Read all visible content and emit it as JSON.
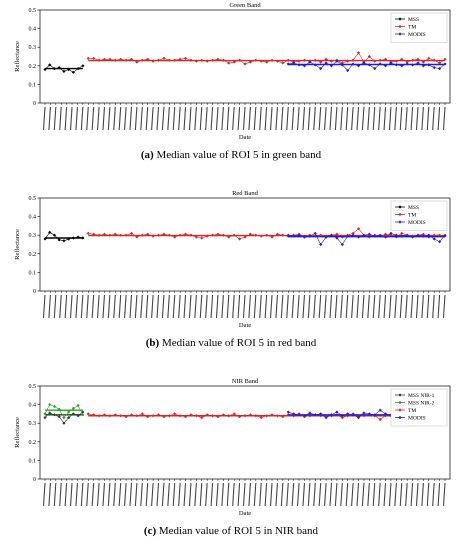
{
  "captions": [
    {
      "letter": "(a)",
      "text": "Median value of ROI 5 in green band"
    },
    {
      "letter": "(b)",
      "text": "Median value of ROI 5 in red band"
    },
    {
      "letter": "(c)",
      "text": "Median value of ROI 5 in NIR band"
    }
  ],
  "colors": {
    "MSS": "#000000",
    "TM": "#d62728",
    "MODIS": "#1f1fd0",
    "MSS NIR-1": "#1f3f1f",
    "MSS NIR-2": "#2ca02c"
  },
  "chart_data": [
    {
      "type": "line",
      "title": "Green Band",
      "xlabel": "Date",
      "ylabel": "Reflectance",
      "ylim": [
        0,
        0.5
      ],
      "yticks": [
        "0",
        "0.1",
        "0.2",
        "0.3",
        "0.4",
        "0.5"
      ],
      "grid": false,
      "legend_position": "top-right",
      "x_tick_labels_note": "dense rotated date tick labels (yyyy/mm/dd), not individually legible",
      "series": [
        {
          "name": "MSS",
          "color_key": "MSS",
          "x_range": [
            0,
            7
          ],
          "mean": 0.185,
          "values": [
            0.18,
            0.205,
            0.185,
            0.19,
            0.17,
            0.18,
            0.165,
            0.185,
            0.2
          ]
        },
        {
          "name": "TM",
          "color_key": "TM",
          "x_range": [
            8,
            74
          ],
          "mean": 0.228,
          "values": [
            0.24,
            0.24,
            0.23,
            0.235,
            0.235,
            0.23,
            0.235,
            0.23,
            0.235,
            0.22,
            0.23,
            0.235,
            0.225,
            0.23,
            0.24,
            0.23,
            0.23,
            0.235,
            0.24,
            0.23,
            0.225,
            0.23,
            0.225,
            0.23,
            0.235,
            0.23,
            0.215,
            0.22,
            0.23,
            0.21,
            0.22,
            0.23,
            0.225,
            0.22,
            0.23,
            0.225,
            0.215,
            0.23,
            0.22,
            0.225,
            0.23,
            0.225,
            0.23,
            0.22,
            0.235,
            0.225,
            0.23,
            0.215,
            0.225,
            0.23,
            0.27,
            0.22,
            0.25,
            0.225,
            0.23,
            0.235,
            0.22,
            0.225,
            0.235,
            0.22,
            0.23,
            0.235,
            0.22,
            0.24,
            0.23,
            0.215,
            0.235
          ]
        },
        {
          "name": "MODIS",
          "color_key": "MODIS",
          "x_range": [
            45,
            74
          ],
          "mean": 0.207,
          "values": [
            0.21,
            0.215,
            0.205,
            0.2,
            0.22,
            0.205,
            0.185,
            0.215,
            0.2,
            0.225,
            0.205,
            0.175,
            0.21,
            0.2,
            0.215,
            0.205,
            0.185,
            0.21,
            0.2,
            0.215,
            0.205,
            0.2,
            0.21,
            0.205,
            0.215,
            0.2,
            0.205,
            0.19,
            0.185,
            0.21
          ]
        }
      ]
    },
    {
      "type": "line",
      "title": "Red Band",
      "xlabel": "Date",
      "ylabel": "Reflectance",
      "ylim": [
        0,
        0.5
      ],
      "yticks": [
        "0",
        "0.1",
        "0.2",
        "0.3",
        "0.4",
        "0.5"
      ],
      "grid": false,
      "legend_position": "top-right",
      "x_tick_labels_note": "dense rotated date tick labels (yyyy/mm/dd), not individually legible",
      "series": [
        {
          "name": "MSS",
          "color_key": "MSS",
          "x_range": [
            0,
            7
          ],
          "mean": 0.285,
          "values": [
            0.28,
            0.315,
            0.3,
            0.275,
            0.27,
            0.28,
            0.285,
            0.29,
            0.285
          ]
        },
        {
          "name": "TM",
          "color_key": "TM",
          "x_range": [
            8,
            74
          ],
          "mean": 0.298,
          "values": [
            0.31,
            0.305,
            0.3,
            0.305,
            0.3,
            0.305,
            0.3,
            0.3,
            0.31,
            0.29,
            0.3,
            0.305,
            0.295,
            0.3,
            0.305,
            0.3,
            0.29,
            0.3,
            0.305,
            0.3,
            0.29,
            0.285,
            0.295,
            0.3,
            0.305,
            0.3,
            0.29,
            0.3,
            0.28,
            0.29,
            0.305,
            0.3,
            0.295,
            0.3,
            0.29,
            0.305,
            0.3,
            0.295,
            0.3,
            0.305,
            0.29,
            0.3,
            0.295,
            0.3,
            0.29,
            0.3,
            0.305,
            0.29,
            0.3,
            0.31,
            0.335,
            0.3,
            0.29,
            0.3,
            0.295,
            0.305,
            0.3,
            0.29,
            0.31,
            0.3,
            0.295,
            0.3,
            0.305,
            0.29,
            0.3,
            0.3,
            0.295
          ]
        },
        {
          "name": "MODIS",
          "color_key": "MODIS",
          "x_range": [
            45,
            74
          ],
          "mean": 0.292,
          "values": [
            0.3,
            0.295,
            0.3,
            0.29,
            0.295,
            0.31,
            0.25,
            0.29,
            0.3,
            0.285,
            0.25,
            0.295,
            0.3,
            0.29,
            0.3,
            0.305,
            0.295,
            0.3,
            0.29,
            0.31,
            0.3,
            0.295,
            0.3,
            0.29,
            0.3,
            0.295,
            0.3,
            0.28,
            0.265,
            0.3
          ]
        }
      ]
    },
    {
      "type": "line",
      "title": "NIR Band",
      "xlabel": "Date",
      "ylabel": "Reflectance",
      "ylim": [
        0,
        0.5
      ],
      "yticks": [
        "0",
        "0.1",
        "0.2",
        "0.3",
        "0.4",
        "0.5"
      ],
      "grid": false,
      "legend_position": "top-right",
      "x_tick_labels_note": "dense rotated date tick labels (yyyy/mm/dd), not individually legible",
      "series": [
        {
          "name": "MSS NIR-1",
          "color_key": "MSS NIR-1",
          "x_range": [
            0,
            7
          ],
          "mean": 0.345,
          "values": [
            0.33,
            0.355,
            0.345,
            0.335,
            0.3,
            0.33,
            0.35,
            0.34,
            0.36
          ]
        },
        {
          "name": "MSS NIR-2",
          "color_key": "MSS NIR-2",
          "x_range": [
            0,
            7
          ],
          "mean": 0.37,
          "values": [
            0.35,
            0.4,
            0.39,
            0.375,
            0.33,
            0.36,
            0.38,
            0.395,
            0.345
          ]
        },
        {
          "name": "TM",
          "color_key": "TM",
          "x_range": [
            8,
            74
          ],
          "mean": 0.34,
          "values": [
            0.35,
            0.345,
            0.34,
            0.345,
            0.34,
            0.345,
            0.34,
            0.335,
            0.345,
            0.34,
            0.35,
            0.335,
            0.34,
            0.345,
            0.335,
            0.34,
            0.35,
            0.34,
            0.335,
            0.345,
            0.34,
            0.33,
            0.345,
            0.34,
            0.335,
            0.345,
            0.34,
            0.35,
            0.335,
            0.34,
            0.345,
            0.34,
            0.33,
            0.34,
            0.345,
            0.34,
            0.335,
            0.345,
            0.34,
            0.35,
            0.335,
            0.34,
            0.345,
            0.34,
            0.335,
            0.34,
            0.345,
            0.33,
            0.34,
            0.35,
            0.335,
            0.34,
            0.345,
            0.34,
            0.32,
            0.34,
            0.345,
            0.335,
            0.34,
            0.35,
            0.34,
            0.335,
            0.345,
            0.34,
            0.33,
            0.34,
            0.345
          ]
        },
        {
          "name": "MODIS",
          "color_key": "MODIS",
          "x_range": [
            45,
            74
          ],
          "mean": 0.345,
          "values": [
            0.36,
            0.35,
            0.345,
            0.34,
            0.355,
            0.345,
            0.35,
            0.33,
            0.345,
            0.36,
            0.34,
            0.35,
            0.345,
            0.33,
            0.355,
            0.35,
            0.345,
            0.37,
            0.35,
            0.34,
            0.345,
            0.35,
            0.33,
            0.345,
            0.34,
            0.35,
            0.345,
            0.34,
            0.345,
            0.35
          ]
        }
      ]
    }
  ]
}
